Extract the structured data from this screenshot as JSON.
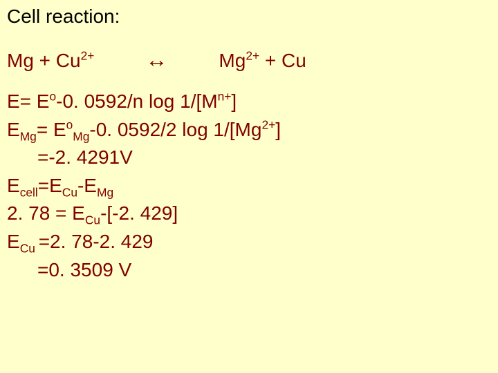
{
  "background_color": "#ffffcc",
  "title_color": "#000000",
  "body_color": "#800000",
  "base_fontsize_pt": 21,
  "title": "Cell reaction:",
  "reaction": {
    "lhs_l": "Mg   + Cu",
    "lhs_sup": "2+",
    "arrow": "↔",
    "rhs_l": "Mg",
    "rhs_sup": "2+",
    "rhs_r": "  +  Cu"
  },
  "lines": {
    "l1_a": "E= E",
    "l1_sup1": "o",
    "l1_b": "-0. 0592/n log 1/[M",
    "l1_sup2": "n+",
    "l1_c": "]",
    "l2_a": "E",
    "l2_sub1": "Mg",
    "l2_b": "= E",
    "l2_sup1": "o",
    "l2_sub2": "Mg",
    "l2_c": "-0. 0592/2 log 1/[Mg",
    "l2_sup2": "2+",
    "l2_d": "]",
    "l3": "=-2. 4291V",
    "l4_a": "E",
    "l4_sub1": "cell",
    "l4_b": "=E",
    "l4_sub2": "Cu",
    "l4_c": "-E",
    "l4_sub3": "Mg",
    "l5_a": "2. 78 = E",
    "l5_sub1": "Cu",
    "l5_b": "-[-2. 429]",
    "l6_a": "E",
    "l6_sub1": "Cu ",
    "l6_b": "=2. 78-2. 429",
    "l7": "=0. 3509 V"
  }
}
